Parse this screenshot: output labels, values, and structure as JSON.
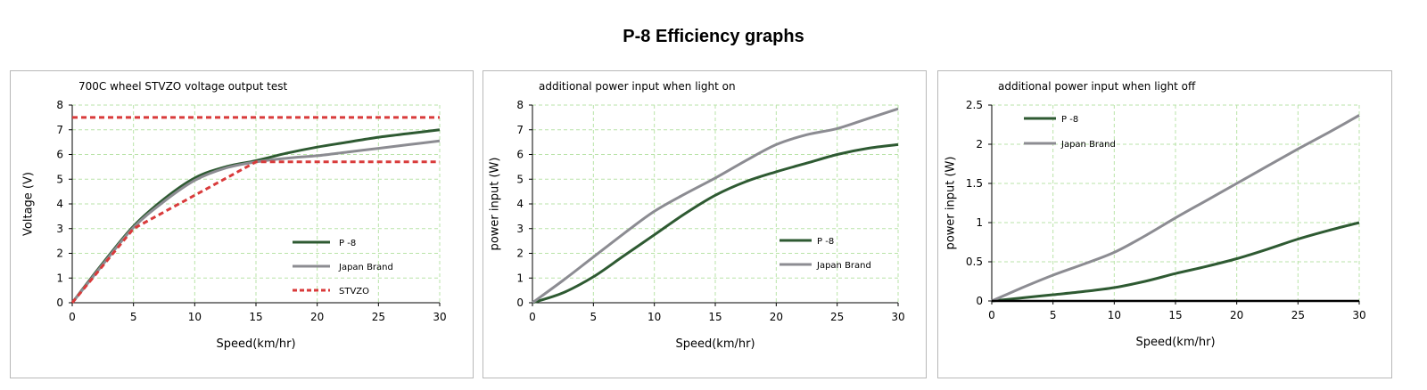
{
  "page_title": "P-8 Efficiency graphs",
  "colors": {
    "p8": "#2e5a32",
    "japan": "#8c8c92",
    "stvzo": "#d93b3b",
    "grid": "#b9e3a8",
    "zero_line": "#000000"
  },
  "chart_data": [
    {
      "type": "line",
      "title": "700C wheel  STVZO voltage output  test",
      "xlabel": "Speed(km/hr)",
      "ylabel": "Voltage  (V)",
      "xlim": [
        0,
        30
      ],
      "ylim": [
        0,
        8
      ],
      "xticks": [
        "0",
        "5",
        "10",
        "15",
        "20",
        "25",
        "30"
      ],
      "yticks": [
        "0",
        "1",
        "2",
        "3",
        "4",
        "5",
        "6",
        "7",
        "8"
      ],
      "grid": true,
      "legend": "center-right",
      "series": [
        {
          "name": "P -8",
          "color": "#2e5a32",
          "style": "solid",
          "x": [
            0,
            2.5,
            5,
            7.5,
            10,
            12.5,
            15,
            17.5,
            20,
            22.5,
            25,
            27.5,
            30
          ],
          "y": [
            0,
            1.6,
            3.1,
            4.2,
            5.05,
            5.5,
            5.75,
            6.05,
            6.3,
            6.5,
            6.7,
            6.85,
            7.0
          ]
        },
        {
          "name": "Japan Brand",
          "color": "#8c8c92",
          "style": "solid",
          "x": [
            0,
            2.5,
            5,
            7.5,
            10,
            12.5,
            15,
            17.5,
            20,
            22.5,
            25,
            27.5,
            30
          ],
          "y": [
            0,
            1.55,
            3.05,
            4.1,
            4.95,
            5.45,
            5.7,
            5.85,
            5.95,
            6.1,
            6.25,
            6.4,
            6.55
          ]
        },
        {
          "name": "STVZO",
          "color": "#d93b3b",
          "style": "dashed",
          "x": [
            0,
            5,
            15,
            30
          ],
          "y": [
            0,
            3,
            5.7,
            5.7
          ]
        },
        {
          "name": "",
          "color": "#d93b3b",
          "style": "dashed",
          "x": [
            0,
            30
          ],
          "y": [
            7.5,
            7.5
          ]
        }
      ]
    },
    {
      "type": "line",
      "title": "additional  power input when light on",
      "xlabel": "Speed(km/hr)",
      "ylabel": "power input  (W)",
      "xlim": [
        0,
        30
      ],
      "ylim": [
        0,
        8
      ],
      "xticks": [
        "0",
        "5",
        "10",
        "15",
        "20",
        "25",
        "30"
      ],
      "yticks": [
        "0",
        "1",
        "2",
        "3",
        "4",
        "5",
        "6",
        "7",
        "8"
      ],
      "grid": true,
      "legend": "center-right",
      "series": [
        {
          "name": "P -8",
          "color": "#2e5a32",
          "style": "solid",
          "x": [
            0,
            2.5,
            5,
            7.5,
            10,
            12.5,
            15,
            17.5,
            20,
            22.5,
            25,
            27.5,
            30
          ],
          "y": [
            0,
            0.4,
            1.05,
            1.9,
            2.75,
            3.6,
            4.35,
            4.9,
            5.3,
            5.65,
            6.0,
            6.25,
            6.4
          ]
        },
        {
          "name": "Japan Brand",
          "color": "#8c8c92",
          "style": "solid",
          "x": [
            0,
            2.5,
            5,
            7.5,
            10,
            12.5,
            15,
            17.5,
            20,
            22.5,
            25,
            27.5,
            30
          ],
          "y": [
            0,
            0.9,
            1.85,
            2.8,
            3.7,
            4.4,
            5.05,
            5.75,
            6.4,
            6.8,
            7.05,
            7.45,
            7.85
          ]
        }
      ]
    },
    {
      "type": "line",
      "title": "additional  power input when light off",
      "xlabel": "Speed(km/hr)",
      "ylabel": "power input  (W)",
      "xlim": [
        0,
        30
      ],
      "ylim": [
        0,
        2.5
      ],
      "xticks": [
        "0",
        "5",
        "10",
        "15",
        "20",
        "25",
        "30"
      ],
      "yticks": [
        "0",
        "0.5",
        "1",
        "1.5",
        "2",
        "2.5"
      ],
      "grid": true,
      "legend": "top-left",
      "series": [
        {
          "name": "P -8",
          "color": "#2e5a32",
          "style": "solid",
          "x": [
            0,
            2.5,
            5,
            7.5,
            10,
            12.5,
            15,
            17.5,
            20,
            22.5,
            25,
            27.5,
            30
          ],
          "y": [
            0,
            0.04,
            0.08,
            0.12,
            0.17,
            0.25,
            0.35,
            0.44,
            0.54,
            0.66,
            0.79,
            0.9,
            1.0
          ]
        },
        {
          "name": "Japan Brand",
          "color": "#8c8c92",
          "style": "solid",
          "x": [
            0,
            2.5,
            5,
            7.5,
            10,
            12.5,
            15,
            17.5,
            20,
            22.5,
            25,
            27.5,
            30
          ],
          "y": [
            0,
            0.17,
            0.33,
            0.47,
            0.62,
            0.83,
            1.06,
            1.28,
            1.5,
            1.72,
            1.94,
            2.15,
            2.37
          ]
        },
        {
          "name": "",
          "color": "#000000",
          "style": "solid",
          "x": [
            0,
            30
          ],
          "y": [
            0,
            0
          ]
        }
      ]
    }
  ]
}
